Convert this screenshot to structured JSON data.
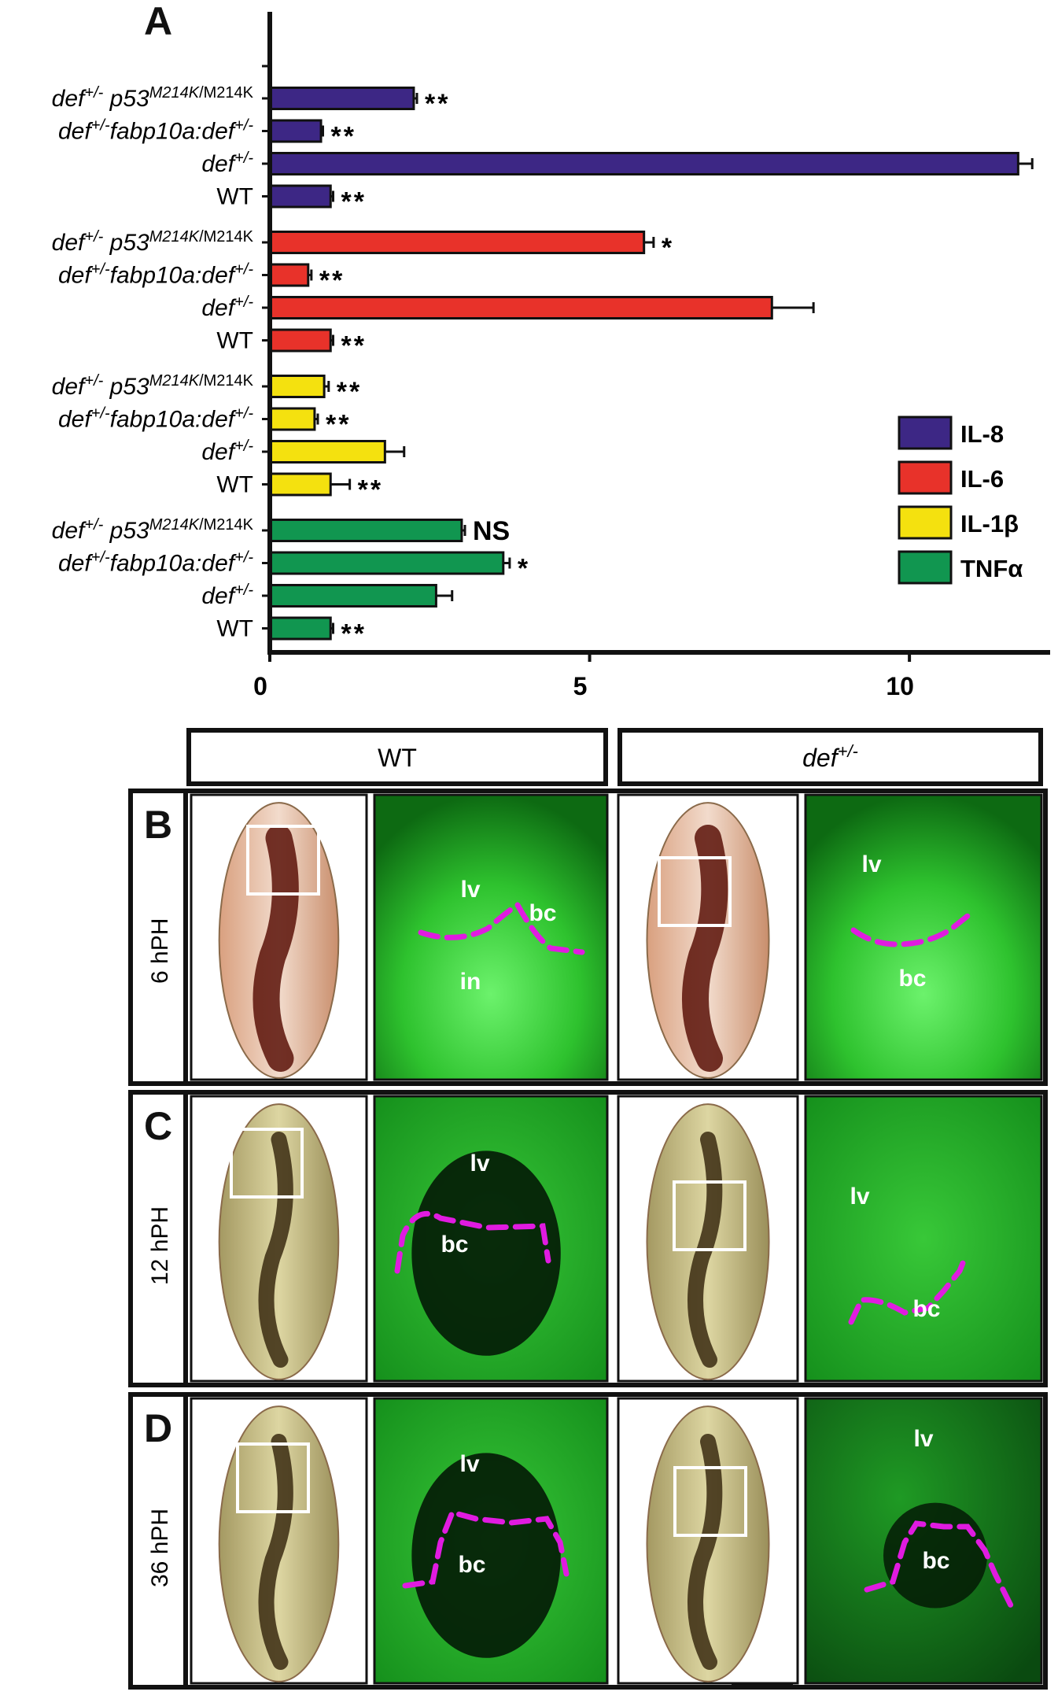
{
  "figure": {
    "panel_a_letter": "A",
    "panels": [
      {
        "letter": "B",
        "time": "6 hPH"
      },
      {
        "letter": "C",
        "time": "12 hPH"
      },
      {
        "letter": "D",
        "time": "36 hPH"
      }
    ],
    "column_headers": [
      "WT",
      "def+/-"
    ],
    "region_labels": {
      "liver": "lv",
      "bile_canal": "bc",
      "intestine": "in"
    }
  },
  "chart_data": {
    "type": "bar",
    "orientation": "horizontal",
    "xlim": [
      0,
      12.2
    ],
    "xticks": [
      0,
      5,
      10
    ],
    "grid": false,
    "legend_position": "right",
    "legend": [
      "IL-8",
      "IL-6",
      "IL-1β",
      "TNFα"
    ],
    "colors": {
      "IL-8": "#3d2785",
      "IL-6": "#e8322a",
      "IL-1β": "#f4e10f",
      "TNFα": "#119650"
    },
    "groups": [
      {
        "name": "IL-8",
        "bars": [
          {
            "label": "def+/- p53M214K/M214K",
            "value": 2.25,
            "error": 0.05,
            "sig": "**"
          },
          {
            "label": "def+/-fabp10a:def+/-",
            "value": 0.8,
            "error": 0.03,
            "sig": "**"
          },
          {
            "label": "def+/-",
            "value": 11.7,
            "error": 0.22,
            "sig": ""
          },
          {
            "label": "WT",
            "value": 0.95,
            "error": 0.04,
            "sig": "**"
          }
        ]
      },
      {
        "name": "IL-6",
        "bars": [
          {
            "label": "def+/- p53M214K/M214K",
            "value": 5.85,
            "error": 0.15,
            "sig": "*"
          },
          {
            "label": "def+/-fabp10a:def+/-",
            "value": 0.6,
            "error": 0.05,
            "sig": "**"
          },
          {
            "label": "def+/-",
            "value": 7.85,
            "error": 0.65,
            "sig": ""
          },
          {
            "label": "WT",
            "value": 0.95,
            "error": 0.04,
            "sig": "**"
          }
        ]
      },
      {
        "name": "IL-1β",
        "bars": [
          {
            "label": "def+/- p53M214K/M214K",
            "value": 0.85,
            "error": 0.07,
            "sig": "**"
          },
          {
            "label": "def+/-fabp10a:def+/-",
            "value": 0.7,
            "error": 0.05,
            "sig": "**"
          },
          {
            "label": "def+/-",
            "value": 1.8,
            "error": 0.3,
            "sig": ""
          },
          {
            "label": "WT",
            "value": 0.95,
            "error": 0.3,
            "sig": "**"
          }
        ]
      },
      {
        "name": "TNFα",
        "bars": [
          {
            "label": "def+/- p53M214K/M214K",
            "value": 3.0,
            "error": 0.05,
            "sig": "NS"
          },
          {
            "label": "def+/-fabp10a:def+/-",
            "value": 3.65,
            "error": 0.1,
            "sig": "*"
          },
          {
            "label": "def+/-",
            "value": 2.6,
            "error": 0.25,
            "sig": ""
          },
          {
            "label": "WT",
            "value": 0.95,
            "error": 0.04,
            "sig": "**"
          }
        ]
      }
    ]
  }
}
